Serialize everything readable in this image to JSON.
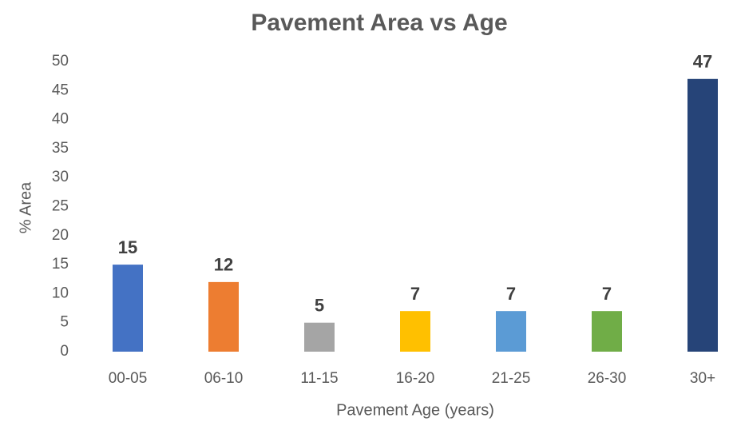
{
  "chart_data": {
    "type": "bar",
    "title": "Pavement Area vs Age",
    "x_label": "Pavement Age (years)",
    "y_label": "% Area",
    "categories": [
      "00-05",
      "06-10",
      "11-15",
      "16-20",
      "21-25",
      "26-30",
      "30+"
    ],
    "values": [
      15,
      12,
      5,
      7,
      7,
      7,
      47
    ],
    "colors": [
      "#4472c4",
      "#ed7d31",
      "#a5a5a5",
      "#ffc000",
      "#5b9bd5",
      "#70ad47",
      "#264478"
    ],
    "ylim": [
      0,
      50
    ],
    "yticks": [
      0,
      5,
      10,
      15,
      20,
      25,
      30,
      35,
      40,
      45,
      50
    ],
    "grid": false
  }
}
